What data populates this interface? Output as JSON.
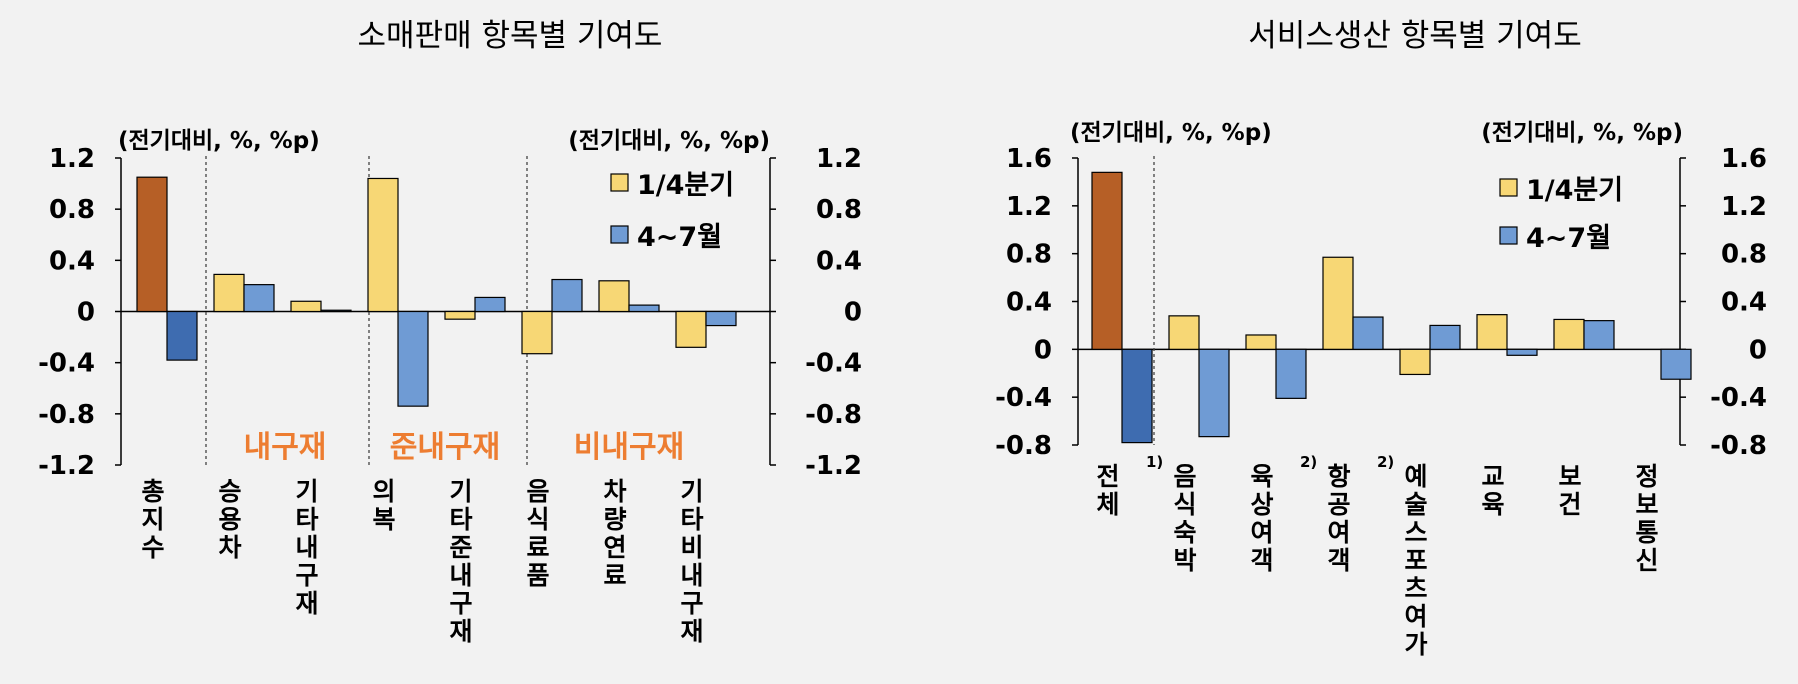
{
  "colors": {
    "q1": "#f7d775",
    "apr_jul": "#6f9bd4",
    "total_q1": "#b65f26",
    "total_apr_jul": "#3e6cb0",
    "group_label": "#ed7d31"
  },
  "chart_data": [
    {
      "type": "bar",
      "title": "소매판매 항목별 기여도",
      "unit_left": "(전기대비, %, %p)",
      "unit_right": "(전기대비, %, %p)",
      "ylim": [
        -1.2,
        1.2
      ],
      "yticks": [
        "1.2",
        "0.8",
        "0.4",
        "0",
        "-0.4",
        "-0.8",
        "-1.2"
      ],
      "categories": [
        "총지수",
        "승용차",
        "기타내구재",
        "의복",
        "기타준내구재",
        "음식료품",
        "차량연료",
        "기타비내구재"
      ],
      "category_superscripts": [
        "",
        "",
        "",
        "",
        "",
        "",
        "",
        ""
      ],
      "series": [
        {
          "name": "1/4분기",
          "values": [
            1.05,
            0.29,
            0.08,
            1.04,
            -0.06,
            -0.33,
            0.24,
            -0.28
          ]
        },
        {
          "name": "4~7월",
          "values": [
            -0.38,
            0.21,
            0.01,
            -0.74,
            0.11,
            0.25,
            0.05,
            -0.11
          ]
        }
      ],
      "group_labels": [
        "내구재",
        "준내구재",
        "비내구재"
      ],
      "legend_position": "top-right",
      "grid": false
    },
    {
      "type": "bar",
      "title": "서비스생산 항목별 기여도",
      "unit_left": "(전기대비, %, %p)",
      "unit_right": "(전기대비, %, %p)",
      "ylim": [
        -0.8,
        1.6
      ],
      "yticks": [
        "1.6",
        "1.2",
        "0.8",
        "0.4",
        "0",
        "-0.4",
        "-0.8"
      ],
      "categories": [
        "전체",
        "음식숙박",
        "육상여객",
        "항공여객",
        "예술스포츠여가",
        "교육",
        "보건",
        "정보통신"
      ],
      "category_superscripts": [
        "1)",
        "",
        "2)",
        "2)",
        "",
        "",
        "",
        ""
      ],
      "series": [
        {
          "name": "1/4분기",
          "values": [
            1.48,
            0.28,
            0.12,
            0.77,
            -0.21,
            0.29,
            0.25,
            0.0
          ]
        },
        {
          "name": "4~7월",
          "values": [
            -0.78,
            -0.73,
            -0.41,
            0.27,
            0.2,
            -0.05,
            0.24,
            -0.25
          ]
        }
      ],
      "group_labels": [],
      "legend_position": "top-right",
      "grid": false
    }
  ]
}
